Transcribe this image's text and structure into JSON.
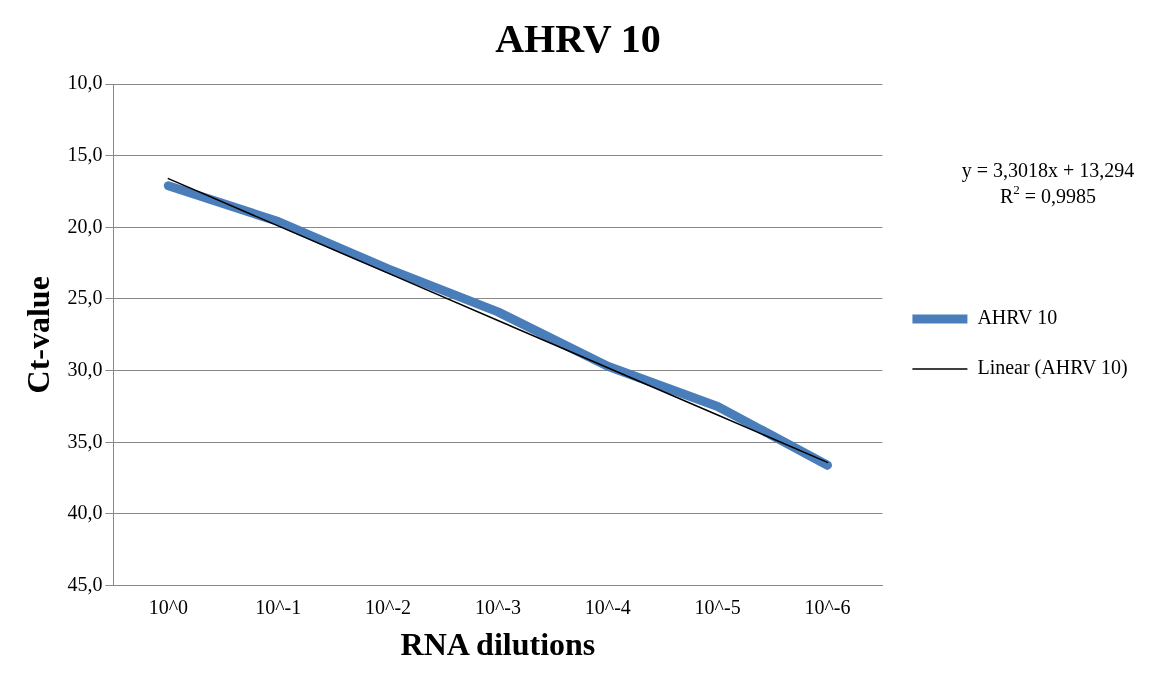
{
  "chart_data": {
    "type": "line",
    "title": "AHRV 10",
    "xlabel": "RNA dilutions",
    "ylabel": "Ct-value",
    "categories": [
      "10^0",
      "10^-1",
      "10^-2",
      "10^-3",
      "10^-4",
      "10^-5",
      "10^-6"
    ],
    "series": [
      {
        "name": "AHRV 10",
        "color": "#4a7ebb",
        "values": [
          17.1,
          19.6,
          22.9,
          25.9,
          29.7,
          32.5,
          36.6
        ]
      },
      {
        "name": "Linear (AHRV 10)",
        "color": "#000000",
        "values": [
          16.6,
          19.9,
          23.2,
          26.5,
          29.8,
          33.1,
          36.4
        ]
      }
    ],
    "ylim": [
      45,
      10
    ],
    "yticks": [
      {
        "value": 10,
        "label": "10,0"
      },
      {
        "value": 15,
        "label": "15,0"
      },
      {
        "value": 20,
        "label": "20,0"
      },
      {
        "value": 25,
        "label": "25,0"
      },
      {
        "value": 30,
        "label": "30,0"
      },
      {
        "value": 35,
        "label": "35,0"
      },
      {
        "value": 40,
        "label": "40,0"
      },
      {
        "value": 45,
        "label": "45,0"
      }
    ],
    "grid": "y",
    "legend": "right",
    "marker": "none",
    "line_style": "solid",
    "annotations": [
      "y = 3,3018x + 13,294",
      "R$^{2}$ = 0,9985"
    ]
  }
}
